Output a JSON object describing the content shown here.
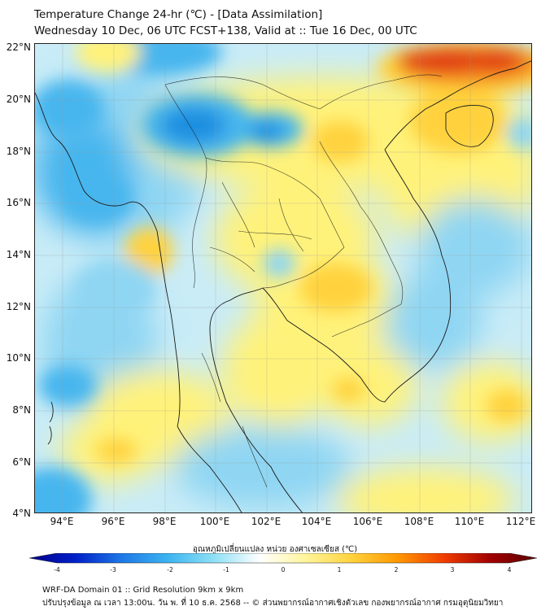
{
  "title": {
    "line1": "Temperature Change 24-hr (℃) - [Data Assimilation]",
    "line2": "Wednesday 10 Dec, 06 UTC FCST+138, Valid at :: Tue 16 Dec, 00 UTC"
  },
  "axes": {
    "lat_labels": [
      "22°N",
      "20°N",
      "18°N",
      "16°N",
      "14°N",
      "12°N",
      "10°N",
      "8°N",
      "6°N",
      "4°N"
    ],
    "lon_labels": [
      "94°E",
      "96°E",
      "98°E",
      "100°E",
      "102°E",
      "104°E",
      "106°E",
      "108°E",
      "110°E",
      "112°E"
    ]
  },
  "colorbar": {
    "label": "อุณหภูมิเปลี่ยนแปลง หน่วย องศาเซลเซียส (℃)",
    "ticks": [
      "-4",
      "-3",
      "-2",
      "-1",
      "0",
      "1",
      "2",
      "3",
      "4"
    ],
    "min": -4,
    "max": 4,
    "colors": [
      "#00008a",
      "#0020c8",
      "#1e78e6",
      "#3cb4f0",
      "#8ee0f5",
      "#ffffff",
      "#fff59a",
      "#ffd23c",
      "#ff9600",
      "#f03c00",
      "#a00000",
      "#5a0000"
    ]
  },
  "footer": {
    "line1": "WRF-DA Domain 01 :: Grid Resolution 9km x 9km",
    "line2": "ปรับปรุงข้อมูล ณ เวลา 13:00น. วัน พ. ที่ 10 ธ.ค. 2568 -- © ส่วนพยากรณ์อากาศเชิงตัวเลข กองพยากรณ์อากาศ กรมอุตุนิยมวิทยา"
  },
  "map_colors": {
    "base": "#c9ecf7",
    "cold_core": "#1f8fe0",
    "cold": "#47b6ee",
    "cool": "#8fd6f3",
    "warm": "#fff27a",
    "warmer": "#ffd23c",
    "hot": "#f58c1e",
    "hottest": "#e03a14"
  }
}
